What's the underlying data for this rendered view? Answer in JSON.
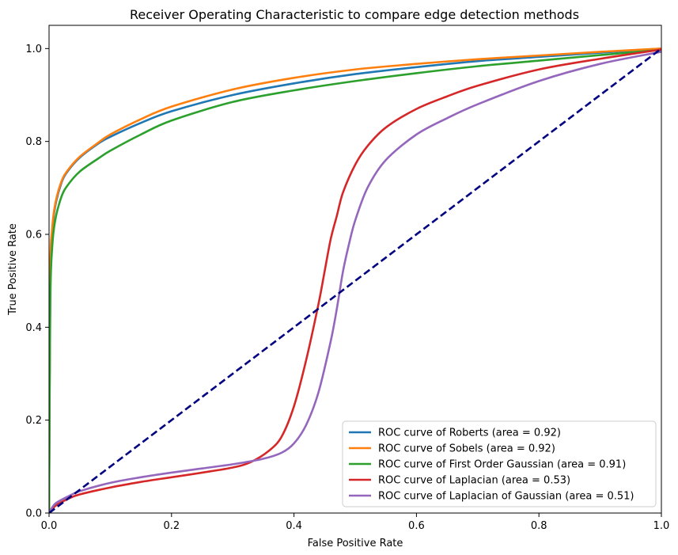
{
  "chart_data": {
    "type": "line",
    "title": "Receiver Operating Characteristic to compare edge detection methods",
    "xlabel": "False Positive Rate",
    "ylabel": "True Positive Rate",
    "xlim": [
      0.0,
      1.0
    ],
    "ylim": [
      0.0,
      1.05
    ],
    "xticks": [
      "0.0",
      "0.2",
      "0.4",
      "0.6",
      "0.8",
      "1.0"
    ],
    "yticks": [
      "0.0",
      "0.2",
      "0.4",
      "0.6",
      "0.8",
      "1.0"
    ],
    "grid": false,
    "legend_position": "lower-right",
    "series": [
      {
        "name": "ROC curve of Roberts (area = 0.92)",
        "color": "#1f77b4",
        "x": [
          0,
          0.002,
          0.005,
          0.01,
          0.02,
          0.03,
          0.05,
          0.08,
          0.1,
          0.15,
          0.2,
          0.3,
          0.4,
          0.5,
          0.6,
          0.7,
          0.8,
          0.9,
          1.0
        ],
        "y": [
          0,
          0.5,
          0.6,
          0.66,
          0.71,
          0.735,
          0.765,
          0.795,
          0.81,
          0.84,
          0.865,
          0.9,
          0.925,
          0.945,
          0.96,
          0.973,
          0.982,
          0.991,
          1.0
        ]
      },
      {
        "name": "ROC curve of Sobels (area = 0.92)",
        "color": "#ff7f0e",
        "x": [
          0,
          0.002,
          0.005,
          0.01,
          0.02,
          0.03,
          0.05,
          0.08,
          0.1,
          0.15,
          0.2,
          0.3,
          0.4,
          0.5,
          0.6,
          0.7,
          0.8,
          0.9,
          1.0
        ],
        "y": [
          0,
          0.51,
          0.61,
          0.665,
          0.713,
          0.737,
          0.767,
          0.797,
          0.815,
          0.848,
          0.875,
          0.912,
          0.937,
          0.955,
          0.967,
          0.977,
          0.985,
          0.993,
          1.0
        ]
      },
      {
        "name": "ROC curve of First Order Gaussian (area = 0.91)",
        "color": "#2ca02c",
        "x": [
          0,
          0.002,
          0.005,
          0.01,
          0.02,
          0.03,
          0.05,
          0.08,
          0.1,
          0.15,
          0.2,
          0.3,
          0.4,
          0.5,
          0.6,
          0.7,
          0.8,
          0.9,
          1.0
        ],
        "y": [
          0,
          0.45,
          0.57,
          0.63,
          0.68,
          0.705,
          0.735,
          0.763,
          0.78,
          0.815,
          0.845,
          0.885,
          0.91,
          0.93,
          0.947,
          0.962,
          0.974,
          0.986,
          0.997
        ]
      },
      {
        "name": "ROC curve of Laplacian (area = 0.53)",
        "color": "#d62728",
        "x": [
          0,
          0.01,
          0.03,
          0.05,
          0.1,
          0.15,
          0.2,
          0.25,
          0.3,
          0.33,
          0.36,
          0.38,
          0.4,
          0.42,
          0.44,
          0.45,
          0.46,
          0.47,
          0.48,
          0.5,
          0.52,
          0.55,
          0.6,
          0.65,
          0.7,
          0.8,
          0.9,
          1.0
        ],
        "y": [
          0,
          0.015,
          0.03,
          0.04,
          0.055,
          0.067,
          0.077,
          0.087,
          0.098,
          0.11,
          0.135,
          0.165,
          0.23,
          0.33,
          0.45,
          0.52,
          0.59,
          0.64,
          0.69,
          0.75,
          0.79,
          0.83,
          0.87,
          0.897,
          0.92,
          0.955,
          0.978,
          0.998
        ]
      },
      {
        "name": "ROC curve of Laplacian of Gaussian (area = 0.51)",
        "color": "#9467bd",
        "x": [
          0,
          0.01,
          0.03,
          0.05,
          0.1,
          0.15,
          0.2,
          0.25,
          0.3,
          0.35,
          0.38,
          0.4,
          0.42,
          0.44,
          0.46,
          0.47,
          0.48,
          0.49,
          0.5,
          0.52,
          0.55,
          0.6,
          0.65,
          0.7,
          0.8,
          0.9,
          1.0
        ],
        "y": [
          0,
          0.02,
          0.035,
          0.047,
          0.065,
          0.077,
          0.087,
          0.096,
          0.105,
          0.117,
          0.13,
          0.15,
          0.19,
          0.26,
          0.37,
          0.44,
          0.52,
          0.58,
          0.63,
          0.7,
          0.76,
          0.815,
          0.85,
          0.88,
          0.93,
          0.967,
          0.993
        ]
      },
      {
        "name": "",
        "color": "#000080",
        "dashed": true,
        "x": [
          0,
          1
        ],
        "y": [
          0,
          1
        ]
      }
    ]
  }
}
